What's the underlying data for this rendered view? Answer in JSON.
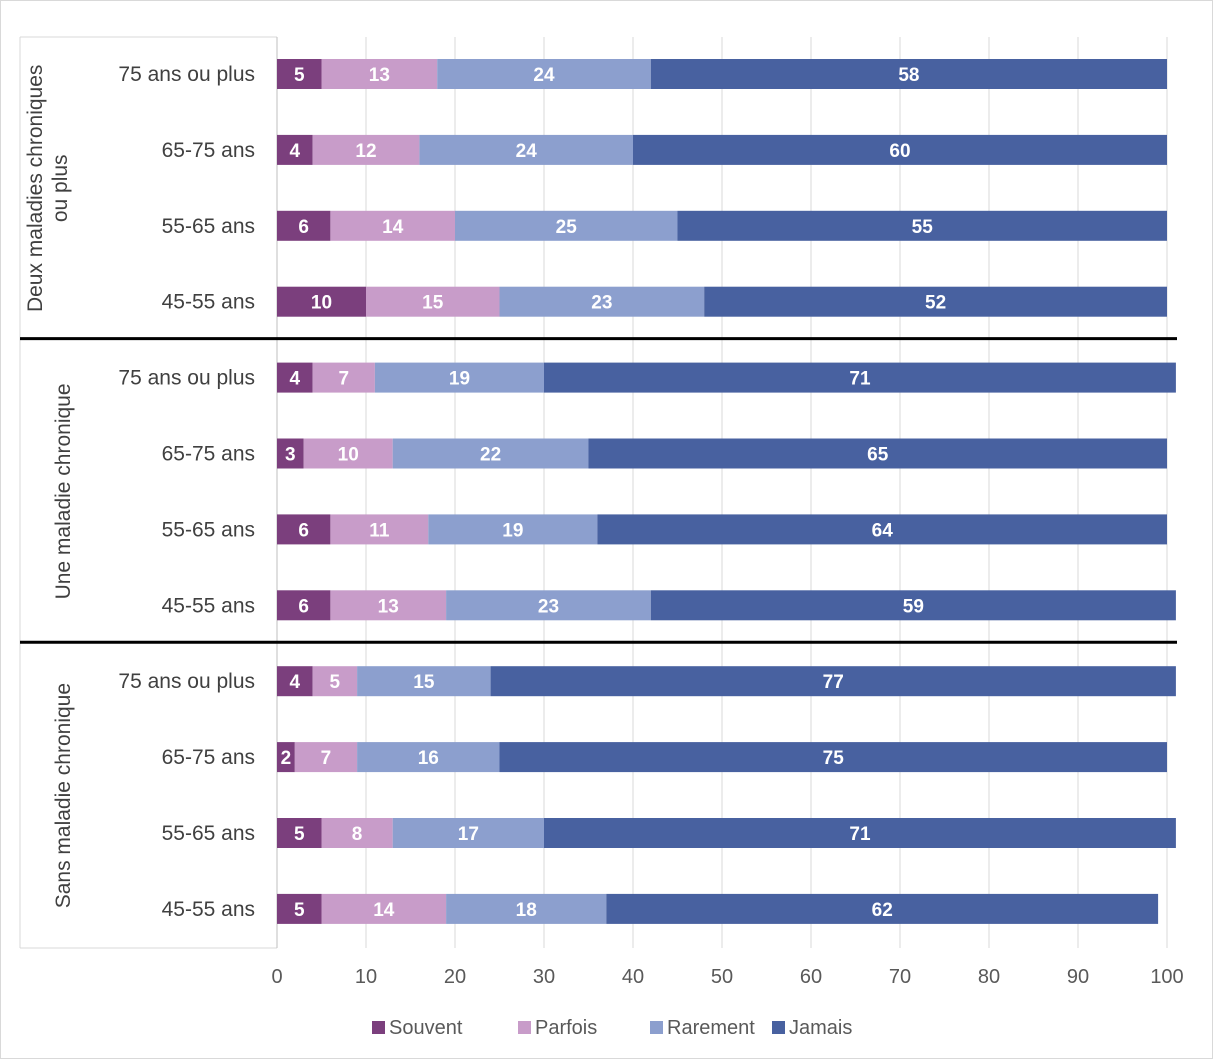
{
  "chart_data": {
    "type": "bar",
    "orientation": "horizontal",
    "stacked": true,
    "xlim": [
      0,
      100
    ],
    "xticks": [
      0,
      10,
      20,
      30,
      40,
      50,
      60,
      70,
      80,
      90,
      100
    ],
    "grid": true,
    "legend_position": "bottom",
    "groups": [
      {
        "label": "Deux maladies chroniques ou plus",
        "label_lines": [
          "Deux maladies chroniques",
          "ou plus"
        ],
        "categories": [
          "75 ans ou plus",
          "65-75 ans",
          "55-65 ans",
          "45-55 ans"
        ],
        "values": [
          [
            5,
            13,
            24,
            58
          ],
          [
            4,
            12,
            24,
            60
          ],
          [
            6,
            14,
            25,
            55
          ],
          [
            10,
            15,
            23,
            52
          ]
        ]
      },
      {
        "label": "Une maladie chronique",
        "label_lines": [
          "Une maladie chronique"
        ],
        "categories": [
          "75 ans ou plus",
          "65-75 ans",
          "55-65 ans",
          "45-55 ans"
        ],
        "values": [
          [
            4,
            7,
            19,
            71
          ],
          [
            3,
            10,
            22,
            65
          ],
          [
            6,
            11,
            19,
            64
          ],
          [
            6,
            13,
            23,
            59
          ]
        ]
      },
      {
        "label": "Sans maladie chronique",
        "label_lines": [
          "Sans maladie chronique"
        ],
        "categories": [
          "75 ans ou plus",
          "65-75 ans",
          "55-65 ans",
          "45-55 ans"
        ],
        "values": [
          [
            4,
            5,
            15,
            77
          ],
          [
            2,
            7,
            16,
            75
          ],
          [
            5,
            8,
            17,
            71
          ],
          [
            5,
            14,
            18,
            62
          ]
        ]
      }
    ],
    "series": [
      {
        "name": "Souvent",
        "color": "#7b3f7d"
      },
      {
        "name": "Parfois",
        "color": "#c89cc9"
      },
      {
        "name": "Rarement",
        "color": "#8c9fce"
      },
      {
        "name": "Jamais",
        "color": "#4861a0"
      }
    ]
  }
}
